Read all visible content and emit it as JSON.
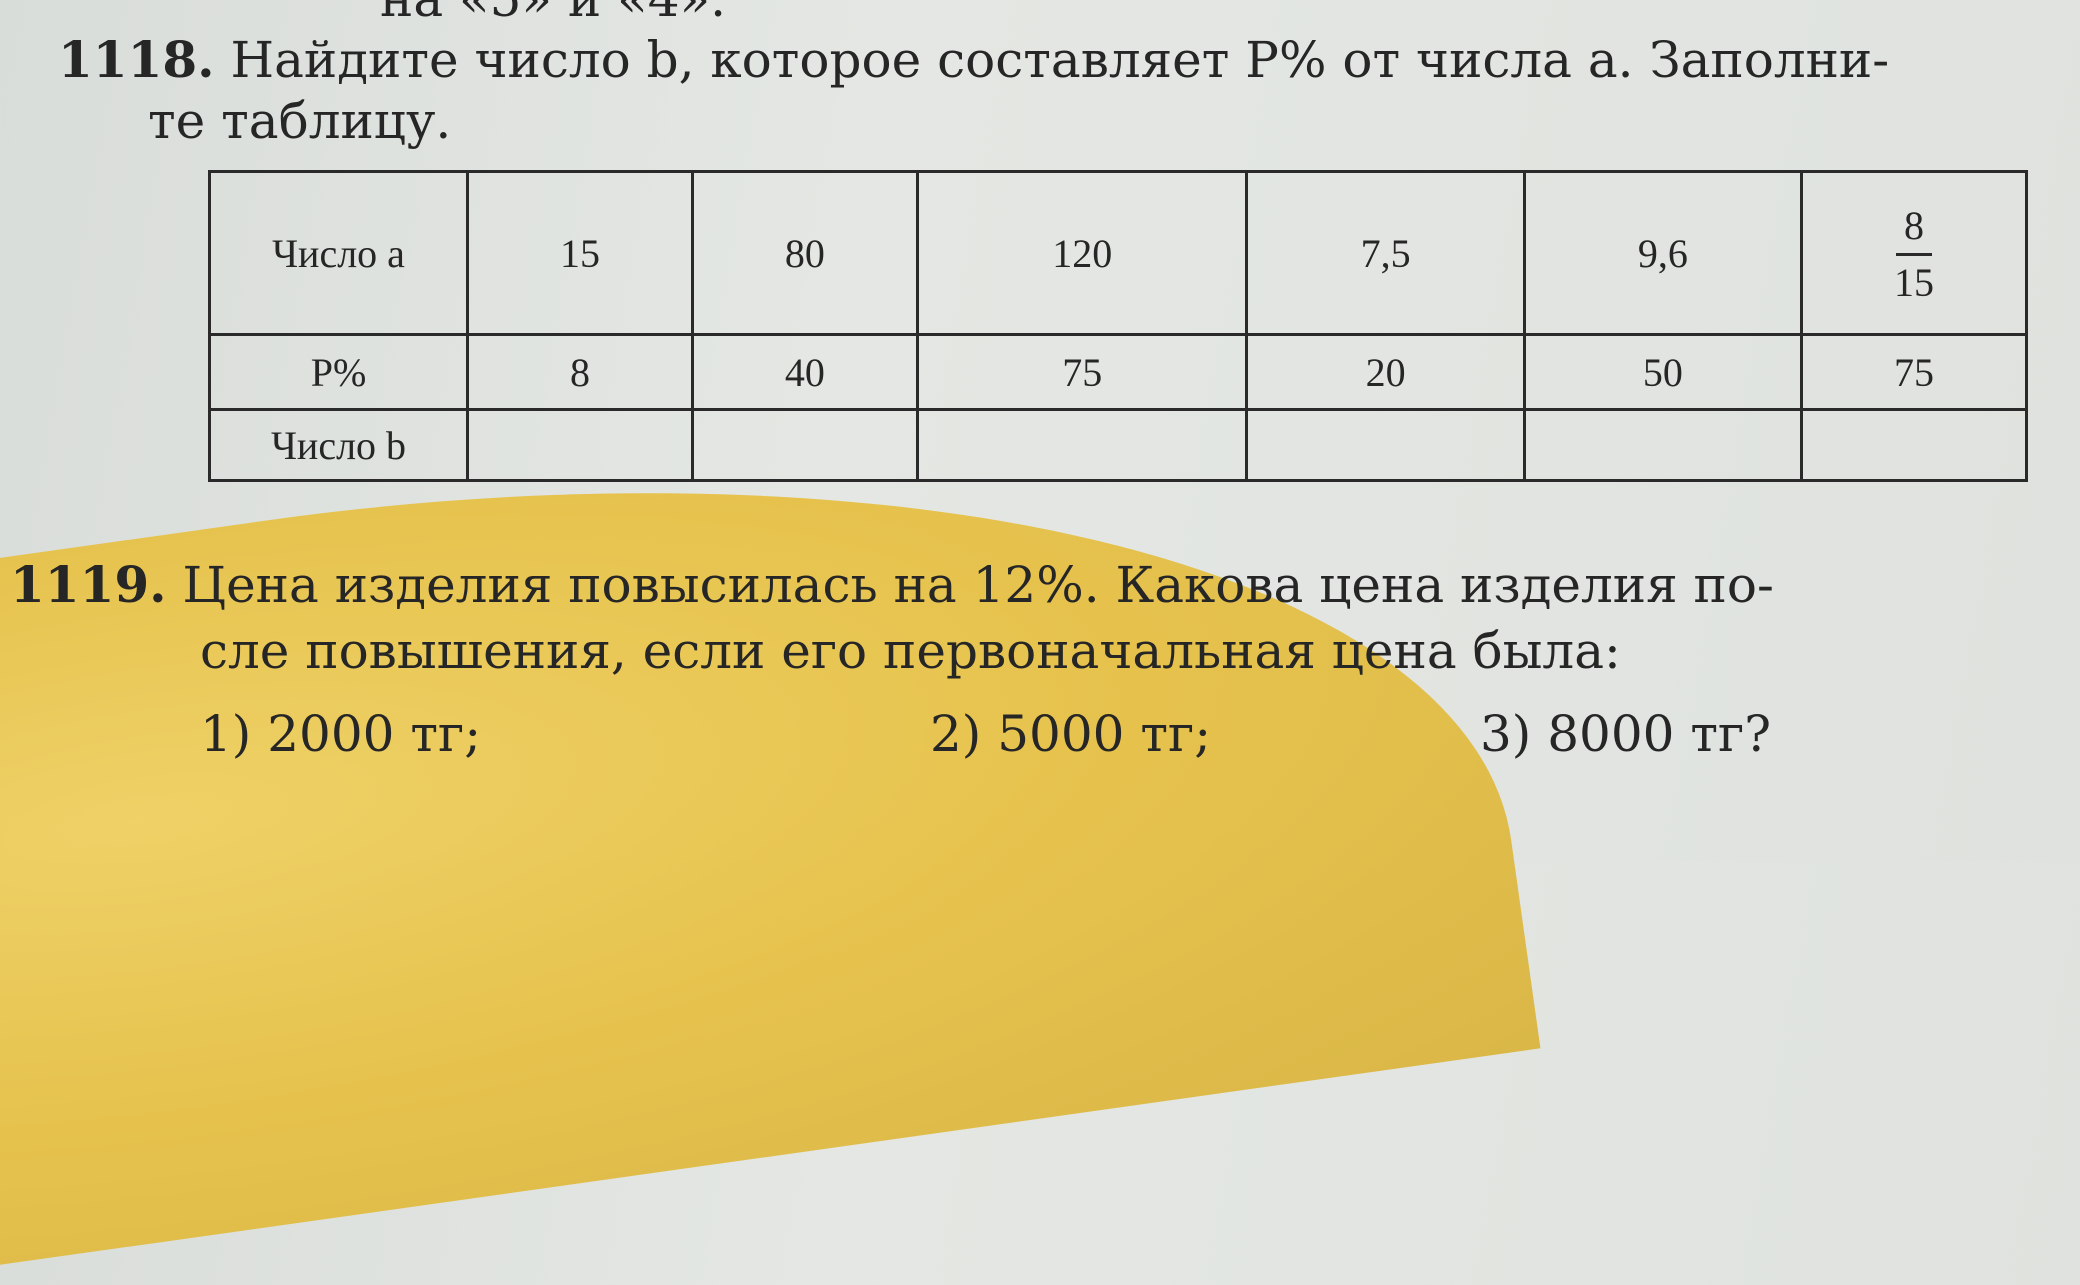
{
  "top_fragment": "на «5» и «4».",
  "task1118": {
    "number": "1118.",
    "line1": "Найдите число b, которое составляет P% от числа a. Заполни-",
    "line2": "те таблицу.",
    "table": {
      "rows": [
        {
          "header": "Число a",
          "cells": [
            "15",
            "80",
            "120",
            "7,5",
            "9,6"
          ],
          "fraction": {
            "numerator": "8",
            "denominator": "15"
          }
        },
        {
          "header": "P%",
          "cells": [
            "8",
            "40",
            "75",
            "20",
            "50",
            "75"
          ]
        },
        {
          "header": "Число b",
          "cells": [
            "",
            "",
            "",
            "",
            "",
            ""
          ]
        }
      ]
    }
  },
  "task1119": {
    "number": "1119.",
    "line1": "Цена изделия повысилась на 12%. Какова цена изделия по-",
    "line2": "сле повышения, если его первоначальная цена была:",
    "answers": [
      "1) 2000 тг;",
      "2) 5000 тг;",
      "3) 8000  тг?"
    ]
  }
}
